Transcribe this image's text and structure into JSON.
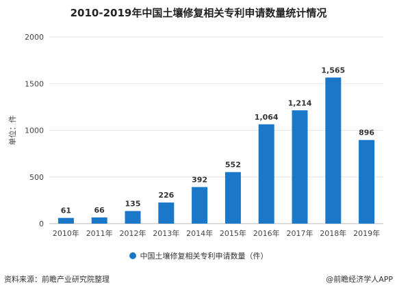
{
  "chart_data": {
    "type": "bar",
    "title": "2010-2019年中国土壤修复相关专利申请数量统计情况",
    "ylabel": "单位：件",
    "xlabel": "",
    "categories": [
      "2010年",
      "2011年",
      "2012年",
      "2013年",
      "2014年",
      "2015年",
      "2016年",
      "2017年",
      "2018年",
      "2019年"
    ],
    "series": [
      {
        "name": "中国土壤修复相关专利申请数量（件）",
        "values": [
          61,
          66,
          135,
          226,
          392,
          552,
          1064,
          1214,
          1565,
          896
        ],
        "value_labels": [
          "61",
          "66",
          "135",
          "226",
          "392",
          "552",
          "1,064",
          "1,214",
          "1,565",
          "896"
        ]
      }
    ],
    "ylim": [
      0,
      2000
    ],
    "yticks": [
      "0",
      "500",
      "1000",
      "1500",
      "2000"
    ],
    "grid": true,
    "legend_position": "bottom",
    "bar_color": "#1b78c8"
  },
  "footer": {
    "source": "资料来源：前瞻产业研究院整理",
    "brand": "@前瞻经济学人APP"
  }
}
